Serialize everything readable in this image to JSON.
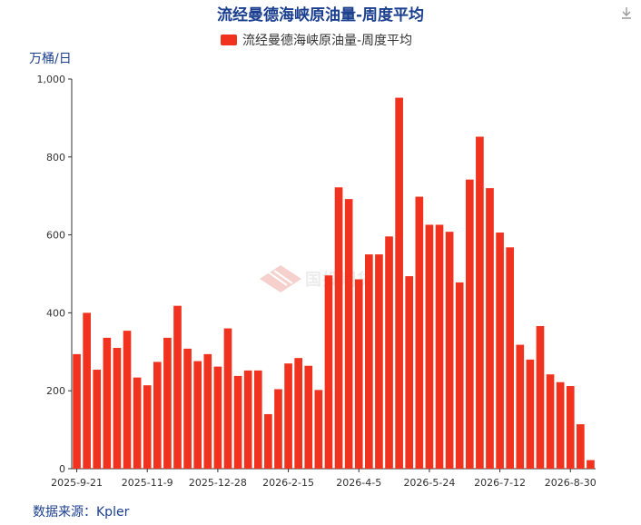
{
  "title": "流经曼德海峡原油量-周度平均",
  "unit": "万桶/日",
  "source": "数据来源：Kpler",
  "download_icon": "download-icon",
  "watermark": {
    "text": "国投期货",
    "icon": "logo-icon"
  },
  "colors": {
    "bar": "#f0321e",
    "title": "#1b3f8f"
  },
  "chart_data": {
    "type": "bar",
    "title": "流经曼德海峡原油量-周度平均",
    "ylabel": "万桶/日",
    "ylim": [
      0,
      1000
    ],
    "yticks": [
      "0",
      "200",
      "400",
      "600",
      "800",
      "1,000"
    ],
    "ytick_values": [
      0,
      200,
      400,
      600,
      800,
      1000
    ],
    "xtick_labels": [
      "2025-9-21",
      "2025-11-9",
      "2025-12-28",
      "2026-2-15",
      "2026-4-5",
      "2026-5-24",
      "2026-7-12",
      "2026-8-30"
    ],
    "xtick_indices": [
      0,
      7,
      14,
      21,
      28,
      35,
      42,
      49
    ],
    "legend": [
      "流经曼德海峡原油量-周度平均"
    ],
    "legend_position": "top-center",
    "grid": false,
    "series": [
      {
        "name": "流经曼德海峡原油量-周度平均",
        "values": [
          294,
          400,
          254,
          336,
          310,
          354,
          234,
          214,
          274,
          336,
          418,
          308,
          276,
          294,
          262,
          360,
          238,
          252,
          252,
          140,
          204,
          270,
          284,
          264,
          202,
          496,
          722,
          692,
          486,
          550,
          550,
          596,
          952,
          494,
          698,
          626,
          626,
          608,
          478,
          742,
          852,
          720,
          606,
          568,
          318,
          280,
          366,
          242,
          222,
          212,
          114,
          22
        ]
      }
    ]
  }
}
